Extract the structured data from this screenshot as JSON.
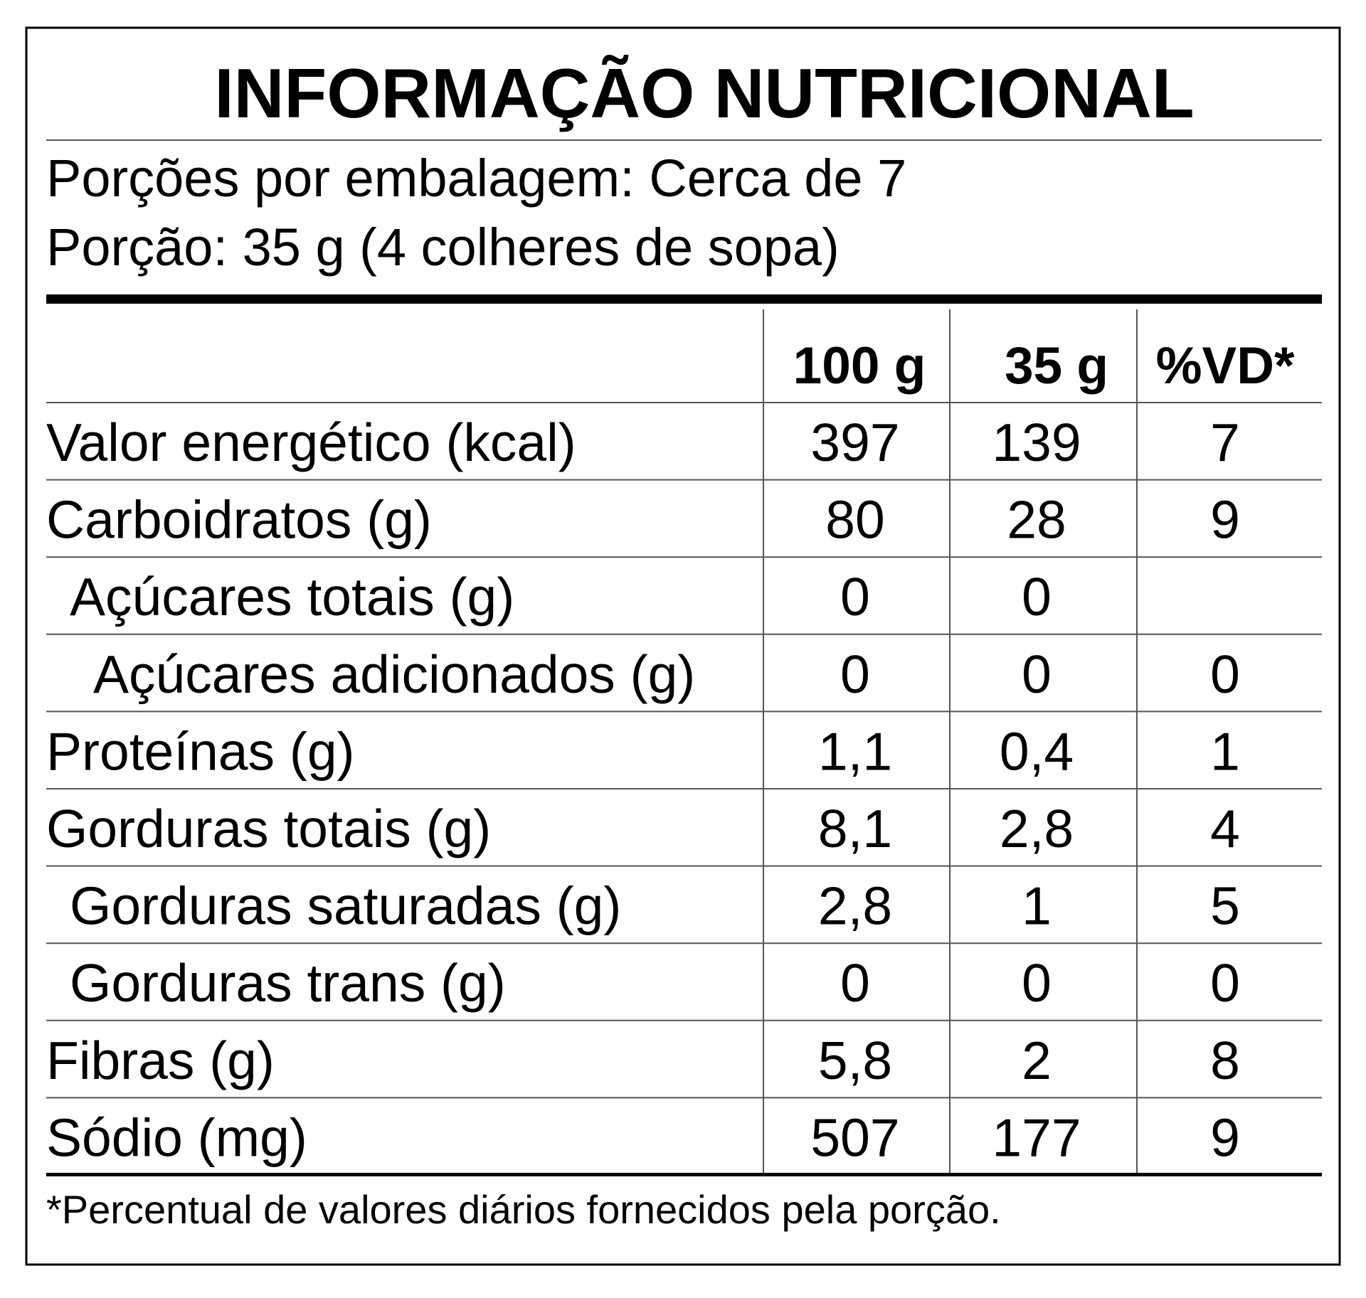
{
  "title": "INFORMAÇÃO NUTRICIONAL",
  "servings": [
    "Porções por embalagem: Cerca de 7",
    "Porção: 35 g (4 colheres de sopa)"
  ],
  "table": {
    "columns": [
      "100 g",
      "35 g",
      "%VD*"
    ],
    "rows": [
      [
        "Valor energético (kcal)",
        "397",
        "139",
        "7"
      ],
      [
        "Carboidratos (g)",
        "80",
        "28",
        "9"
      ],
      [
        "Açúcares totais (g)",
        "0",
        "0",
        null
      ],
      [
        "Açúcares adicionados (g)",
        "0",
        "0",
        "0"
      ],
      [
        "Proteínas (g)",
        "1,1",
        "0,4",
        "1"
      ],
      [
        "Gorduras totais (g)",
        "8,1",
        "2,8",
        "4"
      ],
      [
        "Gorduras saturadas (g)",
        "2,8",
        "1",
        "5"
      ],
      [
        "Gorduras trans (g)",
        "0",
        "0",
        "0"
      ],
      [
        "Fibras (g)",
        "5,8",
        "2",
        "8"
      ],
      [
        "Sódio (mg)",
        "507",
        "177",
        "9"
      ]
    ]
  },
  "footnote": "*Percentual de valores diários fornecidos pela porção."
}
